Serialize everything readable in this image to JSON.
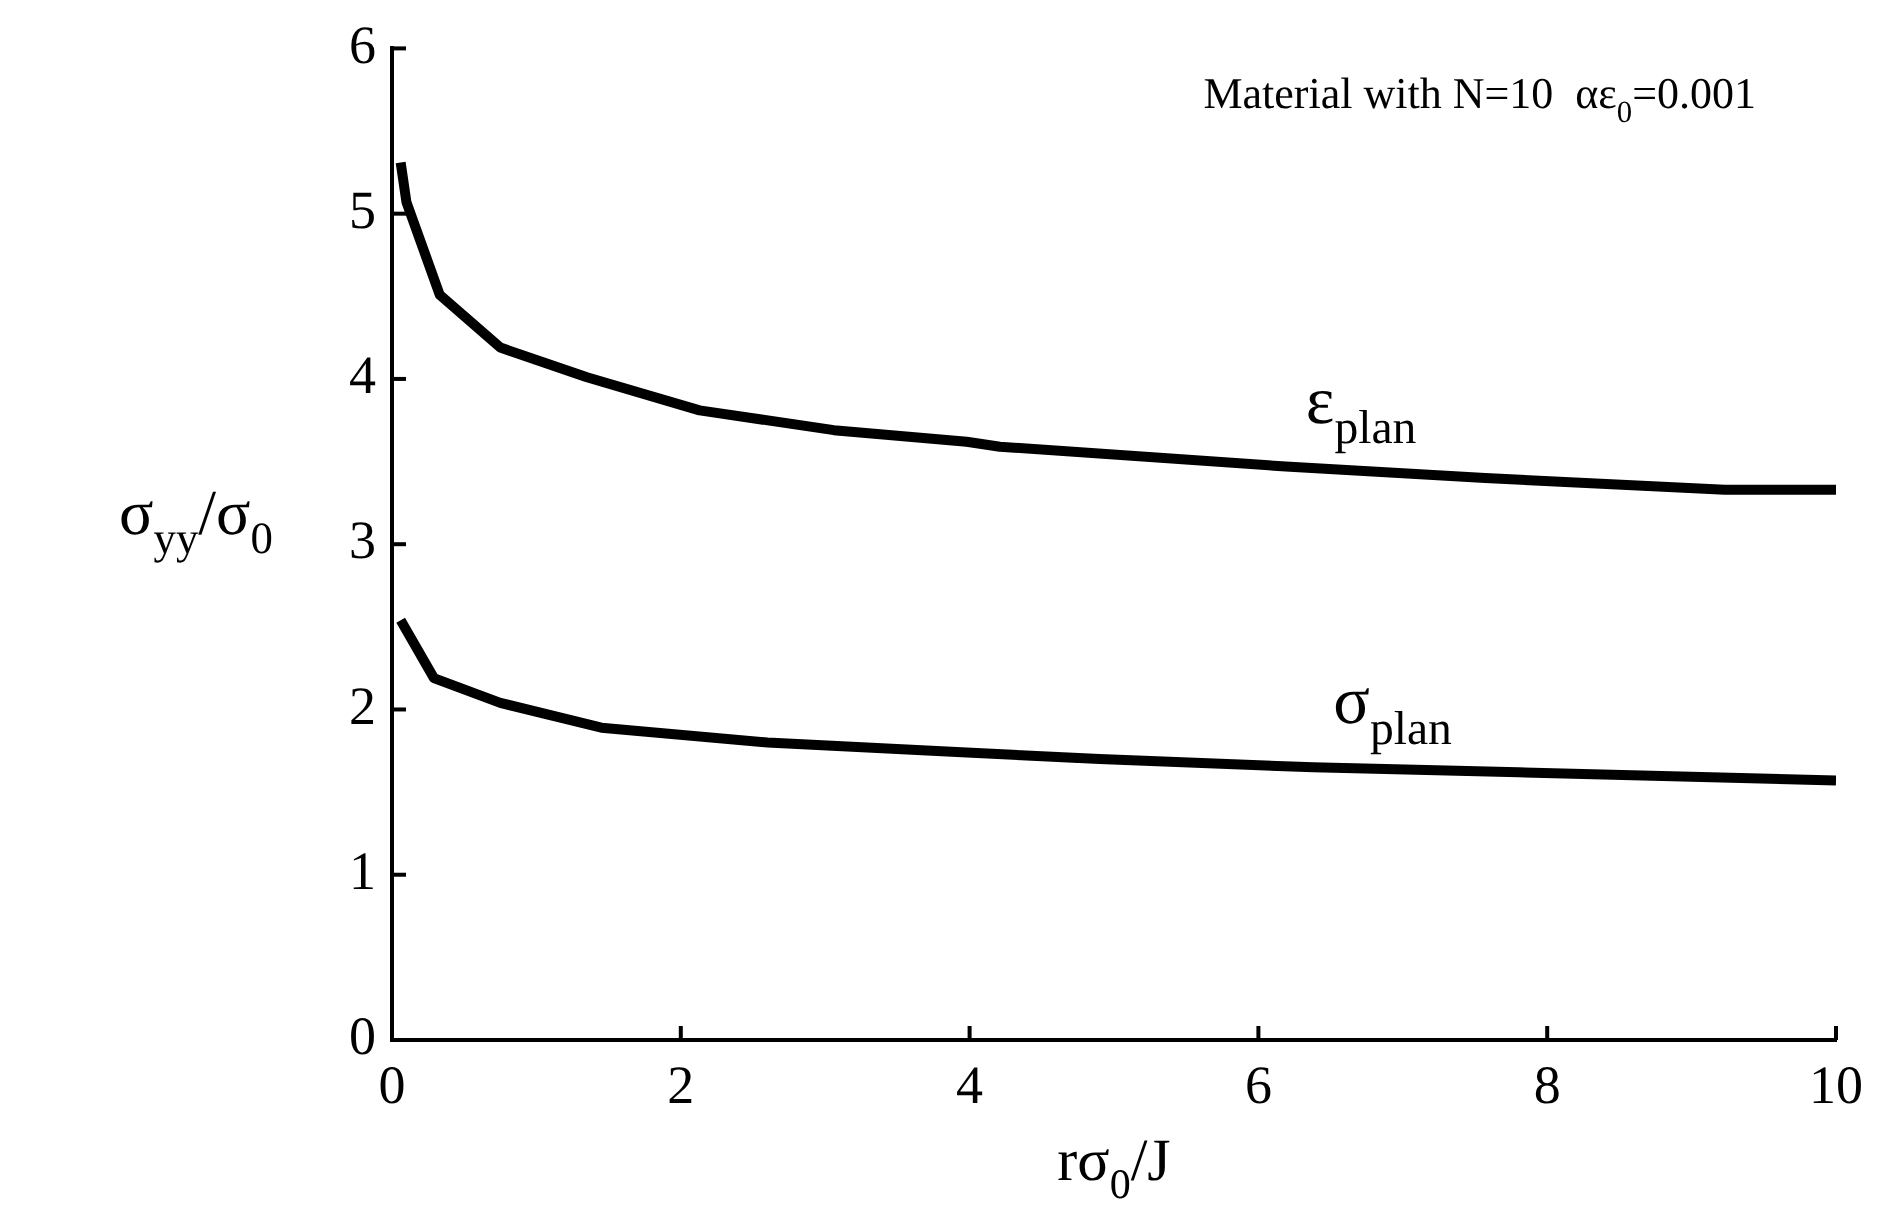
{
  "chart_data": {
    "type": "line",
    "xlabel": "rσ$_{0}$/J",
    "ylabel": "σ$_{yy}$/σ$_{0}$",
    "annotations": [
      "Material with N=10  αε$_{0}$=0.001"
    ],
    "xlim": [
      0,
      10
    ],
    "ylim": [
      0,
      6
    ],
    "xticks": [
      0,
      2,
      4,
      6,
      8,
      10
    ],
    "yticks": [
      0,
      1,
      2,
      3,
      4,
      5,
      6
    ],
    "grid": false,
    "legend": false,
    "marker": "none",
    "line_style": "solid",
    "series": [
      {
        "name": "ε$_{plan}$",
        "color": "#000000",
        "x": [
          0.06,
          0.1,
          0.33,
          0.75,
          1.35,
          2.13,
          3.06,
          3.98,
          4.21,
          6.19,
          7.57,
          9.23,
          10
        ],
        "values": [
          5.31,
          5.07,
          4.51,
          4.19,
          4.01,
          3.81,
          3.69,
          3.62,
          3.59,
          3.47,
          3.4,
          3.33,
          3.33
        ]
      },
      {
        "name": "σ$_{plan}$",
        "color": "#000000",
        "x": [
          0.06,
          0.29,
          0.75,
          1.45,
          2.6,
          3.98,
          4.9,
          6.38,
          7.8,
          10
        ],
        "values": [
          2.54,
          2.19,
          2.04,
          1.89,
          1.8,
          1.74,
          1.7,
          1.65,
          1.62,
          1.57
        ]
      }
    ]
  }
}
